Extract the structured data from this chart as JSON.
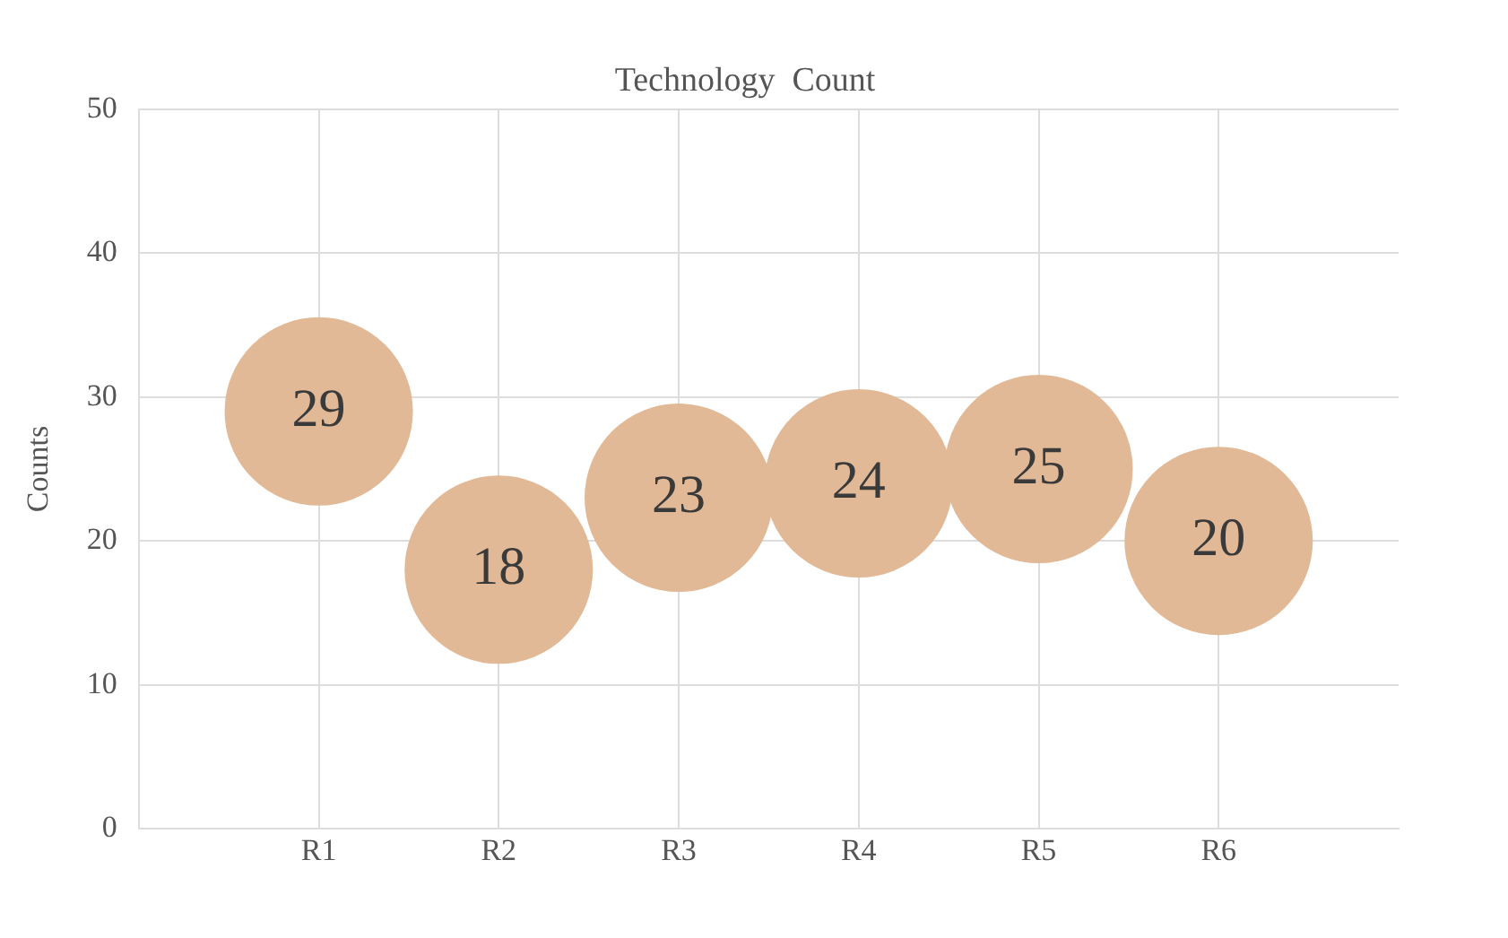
{
  "chart_data": {
    "type": "bubble",
    "title": "Technology  Count",
    "ylabel": "Counts",
    "categories": [
      "R1",
      "R2",
      "R3",
      "R4",
      "R5",
      "R6"
    ],
    "values": [
      29,
      18,
      23,
      24,
      25,
      20
    ],
    "sizes": [
      1,
      1,
      1,
      1,
      1,
      1
    ],
    "color": "#e2b996",
    "ylim": [
      0,
      50
    ],
    "yticks": [
      0,
      10,
      20,
      30,
      40,
      50
    ],
    "grid": true,
    "data_labels": true
  }
}
